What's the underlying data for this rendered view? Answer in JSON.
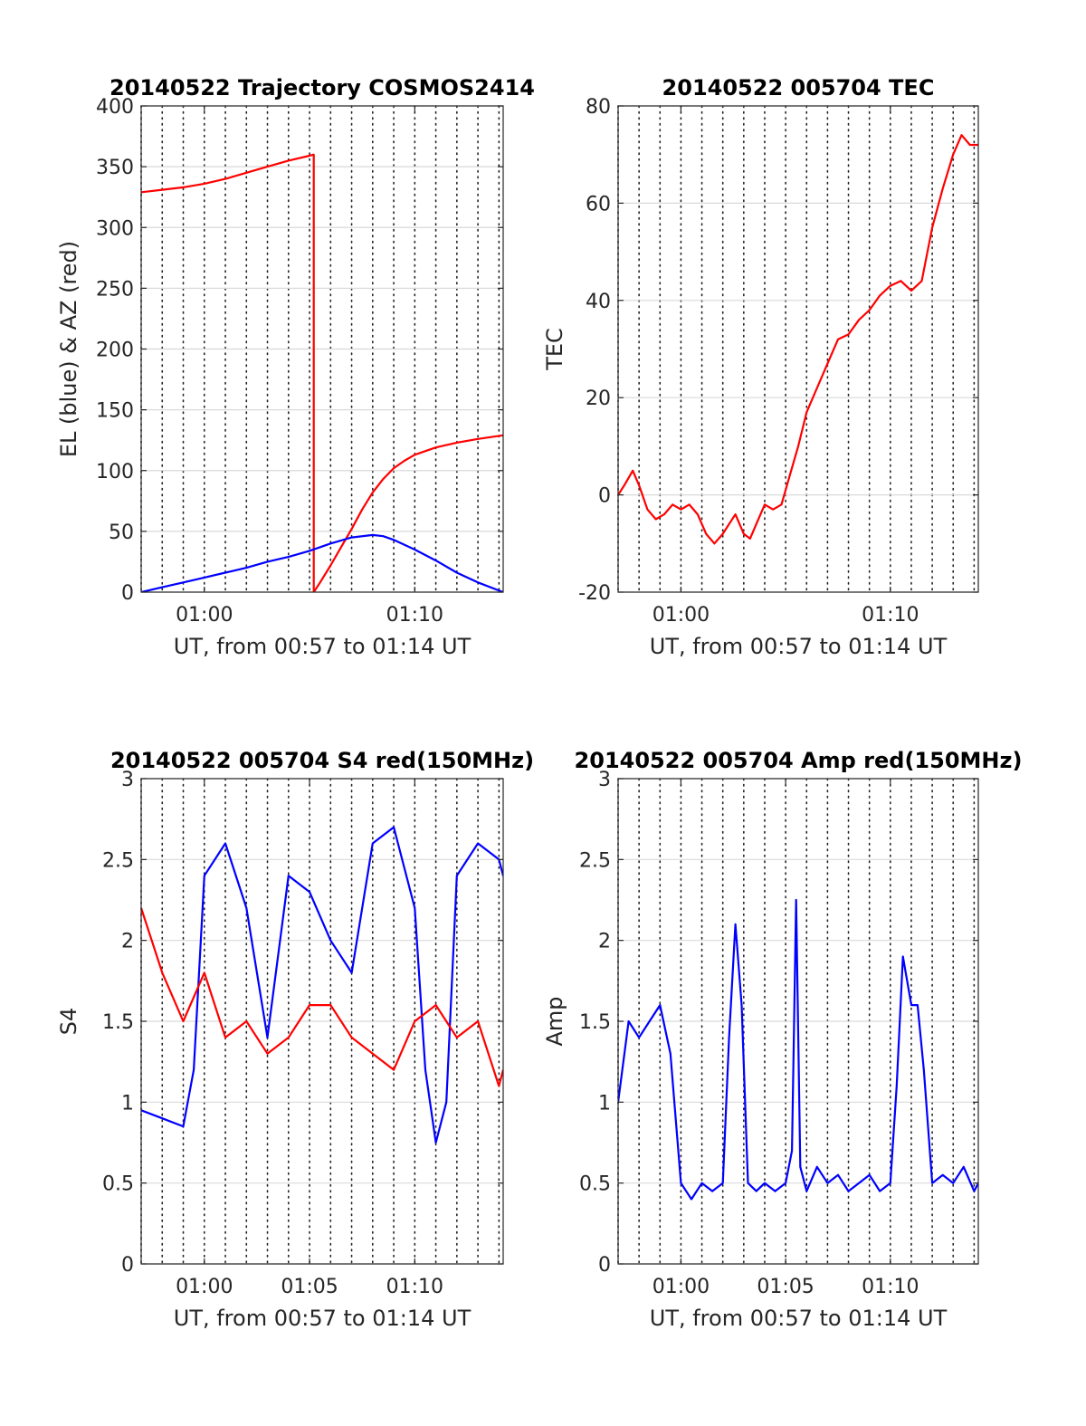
{
  "chart_data": [
    {
      "type": "line",
      "title": "20140522 Trajectory COSMOS2414",
      "xlabel": "UT, from 00:57 to 01:14 UT",
      "ylabel": "EL (blue) & AZ (red)",
      "x_unit": "minutes after 00:00 UT",
      "xlim": [
        57,
        74.2
      ],
      "ylim": [
        0,
        400
      ],
      "xticks": [
        {
          "value": 60,
          "label": "01:00"
        },
        {
          "value": 70,
          "label": "01:10"
        }
      ],
      "yticks": [
        0,
        50,
        100,
        150,
        200,
        250,
        300,
        350,
        400
      ],
      "grid": true,
      "minor_vertical_grid_step": 1,
      "series": [
        {
          "color": "#ff0000",
          "x": [
            57,
            58,
            59,
            60,
            61,
            62,
            63,
            64,
            65,
            65.2
          ],
          "y": [
            329,
            331,
            333,
            336,
            340,
            345,
            350,
            355,
            359,
            360
          ]
        },
        {
          "color": "#ff0000",
          "x": [
            65.2,
            65.2,
            65.5,
            66,
            66.5,
            67,
            67.5,
            68,
            68.5,
            69,
            69.5,
            70,
            71,
            72,
            73,
            74.2
          ],
          "y": [
            360,
            0,
            8,
            22,
            37,
            52,
            68,
            82,
            93,
            102,
            108,
            113,
            119,
            123,
            126,
            129
          ]
        },
        {
          "color": "#0000ff",
          "x": [
            57,
            58,
            59,
            60,
            61,
            62,
            63,
            64,
            65,
            66,
            67,
            68,
            68.5,
            69,
            70,
            71,
            72,
            73,
            74.2
          ],
          "y": [
            0,
            4,
            8,
            12,
            16,
            20,
            25,
            29,
            34,
            40,
            45,
            47,
            46,
            43,
            35,
            26,
            16,
            8,
            0
          ]
        }
      ]
    },
    {
      "type": "line",
      "title": "20140522 005704 TEC",
      "xlabel": "UT, from 00:57 to 01:14 UT",
      "ylabel": "TEC",
      "x_unit": "minutes after 00:00 UT",
      "xlim": [
        57,
        74.2
      ],
      "ylim": [
        -20,
        80
      ],
      "xticks": [
        {
          "value": 60,
          "label": "01:00"
        },
        {
          "value": 70,
          "label": "01:10"
        }
      ],
      "yticks": [
        -20,
        0,
        20,
        40,
        60,
        80
      ],
      "grid": true,
      "minor_vertical_grid_step": 1,
      "series": [
        {
          "color": "#ff0000",
          "x": [
            57,
            57.3,
            57.7,
            58,
            58.4,
            58.8,
            59.2,
            59.6,
            60,
            60.4,
            60.8,
            61.2,
            61.6,
            62,
            62.3,
            62.6,
            63,
            63.3,
            63.6,
            64,
            64.4,
            64.8,
            65.2,
            65.6,
            66,
            66.5,
            67,
            67.5,
            68,
            68.5,
            69,
            69.5,
            70,
            70.5,
            71,
            71.5,
            72,
            72.5,
            73,
            73.4,
            73.8,
            74.2
          ],
          "y": [
            0,
            2,
            5,
            2,
            -3,
            -5,
            -4,
            -2,
            -3,
            -2,
            -4,
            -8,
            -10,
            -8,
            -6,
            -4,
            -8,
            -9,
            -6,
            -2,
            -3,
            -2,
            4,
            10,
            17,
            22,
            27,
            32,
            33,
            36,
            38,
            41,
            43,
            44,
            42,
            44,
            55,
            63,
            70,
            74,
            72,
            72
          ]
        }
      ]
    },
    {
      "type": "line",
      "title": "20140522 005704 S4 red(150MHz)",
      "xlabel": "UT, from 00:57 to 01:14 UT",
      "ylabel": "S4",
      "x_unit": "minutes after 00:00 UT",
      "xlim": [
        57,
        74.2
      ],
      "ylim": [
        0,
        3
      ],
      "xticks": [
        {
          "value": 60,
          "label": "01:00"
        },
        {
          "value": 65,
          "label": "01:05"
        },
        {
          "value": 70,
          "label": "01:10"
        }
      ],
      "yticks": [
        0,
        0.5,
        1,
        1.5,
        2,
        2.5,
        3
      ],
      "grid": true,
      "minor_vertical_grid_step": 1,
      "series": [
        {
          "color": "#0000ff",
          "x": [
            57,
            58,
            59,
            59.5,
            60,
            61,
            62,
            63,
            64,
            65,
            66,
            67,
            68,
            69,
            70,
            70.5,
            71,
            71.5,
            72,
            73,
            74,
            74.2
          ],
          "y": [
            0.95,
            0.9,
            0.85,
            1.2,
            2.4,
            2.6,
            2.2,
            1.4,
            2.4,
            2.3,
            2.0,
            1.8,
            2.6,
            2.7,
            2.2,
            1.2,
            0.75,
            1.0,
            2.4,
            2.6,
            2.5,
            2.4
          ]
        },
        {
          "color": "#ff0000",
          "x": [
            57,
            58,
            59,
            60,
            61,
            62,
            63,
            64,
            65,
            66,
            67,
            68,
            69,
            70,
            71,
            72,
            73,
            74,
            74.2
          ],
          "y": [
            2.2,
            1.8,
            1.5,
            1.8,
            1.4,
            1.5,
            1.3,
            1.4,
            1.6,
            1.6,
            1.4,
            1.3,
            1.2,
            1.5,
            1.6,
            1.4,
            1.5,
            1.1,
            1.2
          ]
        }
      ]
    },
    {
      "type": "line",
      "title": "20140522 005704 Amp red(150MHz)",
      "xlabel": "UT, from 00:57 to 01:14 UT",
      "ylabel": "Amp",
      "x_unit": "minutes after 00:00 UT",
      "xlim": [
        57,
        74.2
      ],
      "ylim": [
        0,
        3
      ],
      "xticks": [
        {
          "value": 60,
          "label": "01:00"
        },
        {
          "value": 65,
          "label": "01:05"
        },
        {
          "value": 70,
          "label": "01:10"
        }
      ],
      "yticks": [
        0,
        0.5,
        1,
        1.5,
        2,
        2.5,
        3
      ],
      "grid": true,
      "minor_vertical_grid_step": 1,
      "series": [
        {
          "color": "#0000ff",
          "x": [
            57,
            57.5,
            58,
            58.5,
            59,
            59.5,
            60,
            60.5,
            61,
            61.5,
            62,
            62.3,
            62.6,
            62.9,
            63.2,
            63.6,
            64,
            64.5,
            65,
            65.3,
            65.5,
            65.7,
            66,
            66.5,
            67,
            67.5,
            68,
            68.5,
            69,
            69.5,
            70,
            70.3,
            70.6,
            71,
            71.3,
            71.6,
            72,
            72.5,
            73,
            73.5,
            74,
            74.2
          ],
          "y": [
            1.0,
            1.5,
            1.4,
            1.5,
            1.6,
            1.3,
            0.5,
            0.4,
            0.5,
            0.45,
            0.5,
            1.4,
            2.1,
            1.6,
            0.5,
            0.45,
            0.5,
            0.45,
            0.5,
            0.7,
            2.25,
            0.6,
            0.45,
            0.6,
            0.5,
            0.55,
            0.45,
            0.5,
            0.55,
            0.45,
            0.5,
            1.1,
            1.9,
            1.6,
            1.6,
            1.2,
            0.5,
            0.55,
            0.5,
            0.6,
            0.45,
            0.5
          ]
        }
      ]
    }
  ]
}
